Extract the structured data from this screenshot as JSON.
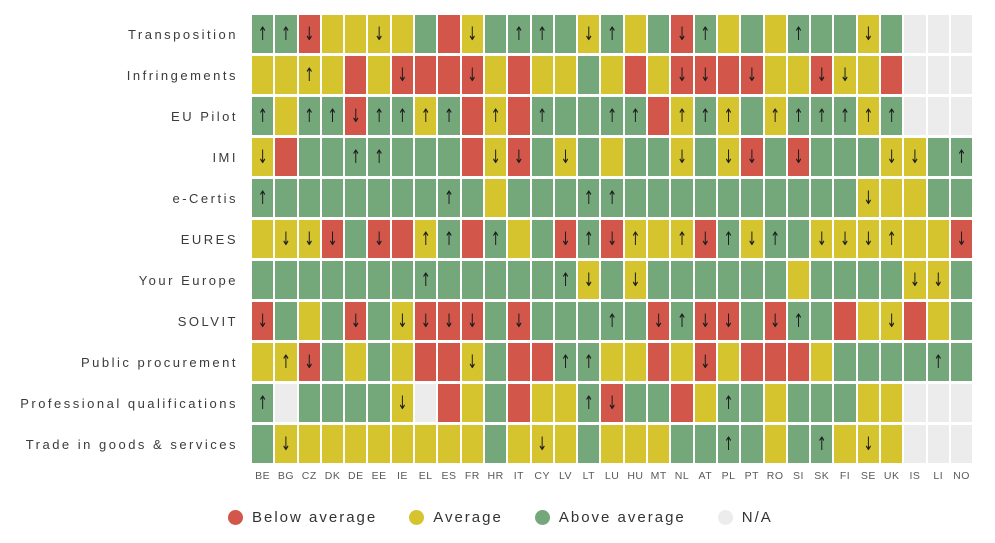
{
  "chart_data": {
    "type": "heatmap",
    "title": "",
    "colors": {
      "above": "#74a87b",
      "average": "#d5c42e",
      "below": "#d2564a",
      "na": "#ececec"
    },
    "arrow_glyphs": {
      "up": "↑",
      "down": "↓"
    },
    "cell_code_key": {
      "g": "Above average",
      "y": "Average",
      "r": "Below average",
      "n": "N/A",
      "+": "upward arrow",
      "-": "downward arrow"
    },
    "columns": [
      "BE",
      "BG",
      "CZ",
      "DK",
      "DE",
      "EE",
      "IE",
      "EL",
      "ES",
      "FR",
      "HR",
      "IT",
      "CY",
      "LV",
      "LT",
      "LU",
      "HU",
      "MT",
      "NL",
      "AT",
      "PL",
      "PT",
      "RO",
      "SI",
      "SK",
      "FI",
      "SE",
      "UK",
      "IS",
      "LI",
      "NO"
    ],
    "rows": [
      {
        "label": "Transposition",
        "cells": [
          "g+",
          "g+",
          "r-",
          "y",
          "y",
          "y-",
          "y",
          "g",
          "r",
          "y-",
          "g",
          "g+",
          "g+",
          "g",
          "y-",
          "g+",
          "y",
          "g",
          "r-",
          "g+",
          "y",
          "g",
          "y",
          "g+",
          "g",
          "g",
          "y-",
          "g",
          "n",
          "n",
          "n"
        ]
      },
      {
        "label": "Infringements",
        "cells": [
          "y",
          "y",
          "y+",
          "y",
          "r",
          "y",
          "r-",
          "r",
          "r",
          "r-",
          "y",
          "r",
          "y",
          "y",
          "g",
          "y",
          "r",
          "y",
          "r-",
          "r-",
          "r",
          "r-",
          "y",
          "y",
          "r-",
          "y-",
          "y",
          "r",
          "n",
          "n",
          "n"
        ]
      },
      {
        "label": "EU Pilot",
        "cells": [
          "g+",
          "y",
          "g+",
          "g+",
          "r-",
          "g+",
          "g+",
          "y+",
          "g+",
          "r",
          "y+",
          "r",
          "g+",
          "g",
          "g",
          "g+",
          "g+",
          "r",
          "y+",
          "g+",
          "y+",
          "g",
          "y+",
          "g+",
          "g+",
          "g+",
          "y+",
          "g+",
          "n",
          "n",
          "n"
        ]
      },
      {
        "label": "IMI",
        "cells": [
          "y-",
          "r",
          "g",
          "g",
          "g+",
          "g+",
          "g",
          "g",
          "g",
          "r",
          "y-",
          "r-",
          "g",
          "y-",
          "g",
          "y",
          "g",
          "g",
          "y-",
          "g",
          "y-",
          "r-",
          "g",
          "r-",
          "g",
          "g",
          "g",
          "y-",
          "y-",
          "g",
          "g+"
        ]
      },
      {
        "label": "e-Certis",
        "cells": [
          "g+",
          "g",
          "g",
          "g",
          "g",
          "g",
          "g",
          "g",
          "g+",
          "g",
          "y",
          "g",
          "g",
          "g",
          "g+",
          "g+",
          "g",
          "g",
          "g",
          "g",
          "g",
          "g",
          "g",
          "g",
          "g",
          "g",
          "y-",
          "y",
          "y",
          "g",
          "g"
        ]
      },
      {
        "label": "EURES",
        "cells": [
          "y",
          "y-",
          "y-",
          "r-",
          "g",
          "r-",
          "r",
          "y+",
          "g+",
          "r",
          "g+",
          "y",
          "g",
          "r-",
          "g+",
          "r-",
          "y+",
          "y",
          "y+",
          "r-",
          "g+",
          "y-",
          "g+",
          "g",
          "y-",
          "y-",
          "y-",
          "y+",
          "y",
          "y",
          "r-"
        ]
      },
      {
        "label": "Your Europe",
        "cells": [
          "g",
          "g",
          "g",
          "g",
          "g",
          "g",
          "g",
          "g+",
          "g",
          "g",
          "g",
          "g",
          "g",
          "g+",
          "y-",
          "g",
          "y-",
          "g",
          "g",
          "g",
          "g",
          "g",
          "g",
          "y",
          "g",
          "g",
          "g",
          "g",
          "y-",
          "y-",
          "g"
        ]
      },
      {
        "label": "SOLVIT",
        "cells": [
          "r-",
          "g",
          "y",
          "g",
          "r-",
          "g",
          "y-",
          "r-",
          "r-",
          "r-",
          "g",
          "r-",
          "g",
          "g",
          "g",
          "g+",
          "g",
          "r-",
          "g+",
          "r-",
          "r-",
          "g",
          "r-",
          "g+",
          "g",
          "r",
          "y",
          "y-",
          "r",
          "y",
          "g"
        ]
      },
      {
        "label": "Public procurement",
        "cells": [
          "y",
          "y+",
          "r-",
          "g",
          "y",
          "g",
          "y",
          "r",
          "r",
          "y-",
          "g",
          "r",
          "r",
          "g+",
          "g+",
          "y",
          "y",
          "r",
          "y",
          "r-",
          "y",
          "r",
          "r",
          "r",
          "y",
          "g",
          "g",
          "g",
          "g",
          "g+",
          "g"
        ]
      },
      {
        "label": "Professional qualifications",
        "cells": [
          "g+",
          "n",
          "g",
          "g",
          "g",
          "g",
          "y-",
          "n",
          "r",
          "y",
          "g",
          "r",
          "y",
          "y",
          "g+",
          "r-",
          "g",
          "g",
          "r",
          "y",
          "g+",
          "g",
          "y",
          "g",
          "g",
          "g",
          "y",
          "y",
          "n",
          "n",
          "n"
        ]
      },
      {
        "label": "Trade in goods & services",
        "cells": [
          "g",
          "y-",
          "y",
          "y",
          "y",
          "y",
          "y",
          "y",
          "y",
          "y",
          "g",
          "y",
          "y-",
          "y",
          "g",
          "y",
          "y",
          "y",
          "g",
          "g",
          "g+",
          "g",
          "y",
          "g",
          "g+",
          "y",
          "y-",
          "y",
          "n",
          "n",
          "n"
        ]
      }
    ],
    "legend_position": "bottom"
  },
  "legend": {
    "items": [
      {
        "label": "Below average",
        "color": "#d2564a"
      },
      {
        "label": "Average",
        "color": "#d5c42e"
      },
      {
        "label": "Above average",
        "color": "#74a87b"
      },
      {
        "label": "N/A",
        "color": "#ececec"
      }
    ]
  }
}
